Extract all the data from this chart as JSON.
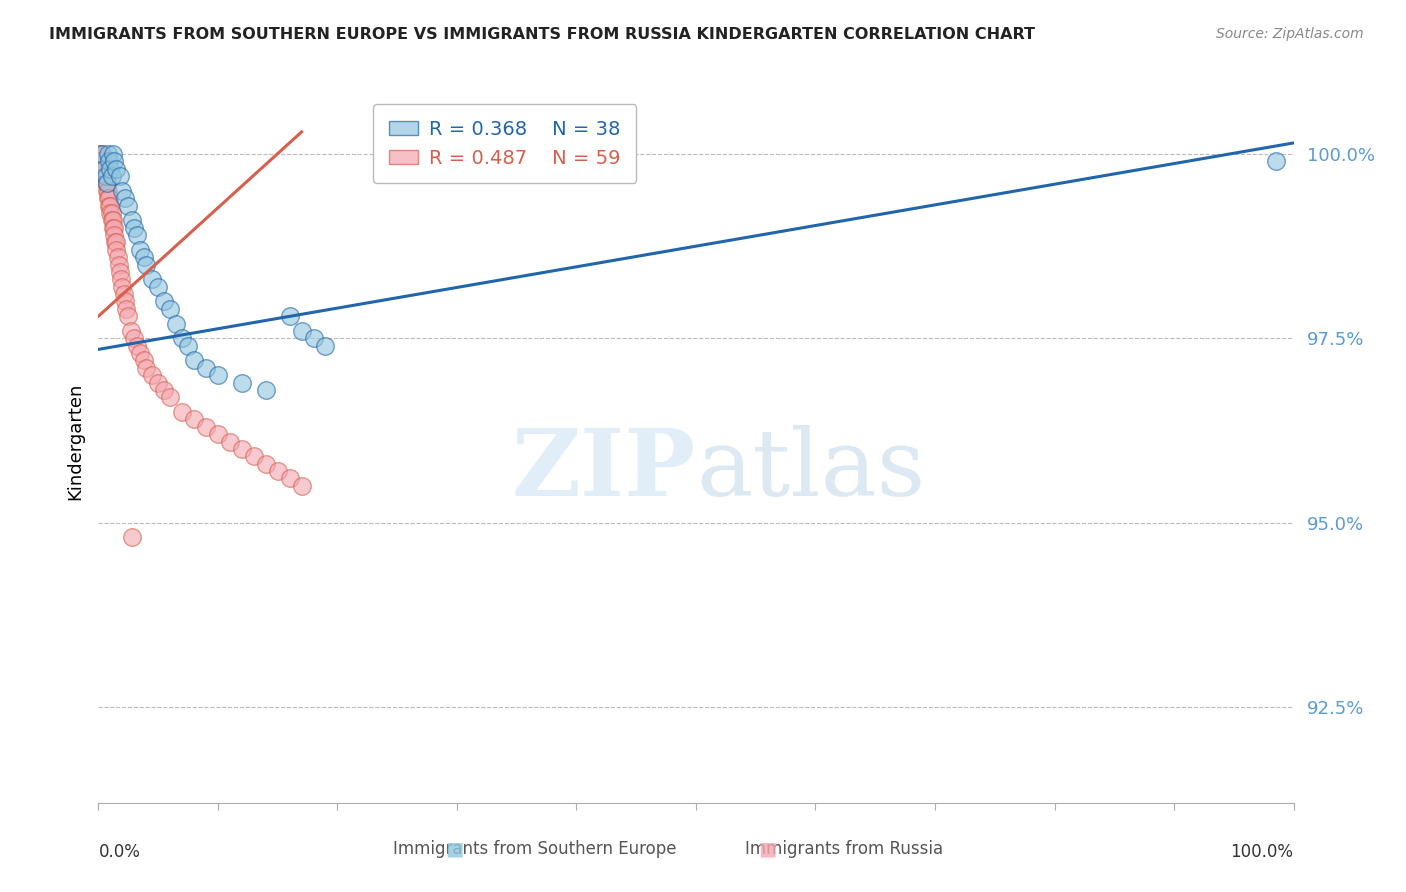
{
  "title": "IMMIGRANTS FROM SOUTHERN EUROPE VS IMMIGRANTS FROM RUSSIA KINDERGARTEN CORRELATION CHART",
  "source": "Source: ZipAtlas.com",
  "ylabel": "Kindergarten",
  "yticks": [
    92.5,
    95.0,
    97.5,
    100.0
  ],
  "ytick_labels": [
    "92.5%",
    "95.0%",
    "97.5%",
    "100.0%"
  ],
  "xlim": [
    0.0,
    100.0
  ],
  "ylim": [
    91.2,
    101.0
  ],
  "watermark_text": "ZIPatlas",
  "legend_r1": "R = 0.368",
  "legend_n1": "N = 38",
  "legend_r2": "R = 0.487",
  "legend_n2": "N = 59",
  "color_blue": "#92c5de",
  "color_pink": "#f4a6b0",
  "color_blue_line": "#2166ac",
  "color_pink_line": "#d6604d",
  "color_ytick": "#5b9bd5",
  "color_xtick": "#333333",
  "scatter_blue_x": [
    0.3,
    0.5,
    0.6,
    0.7,
    0.8,
    0.9,
    1.0,
    1.1,
    1.2,
    1.3,
    1.5,
    1.8,
    2.0,
    2.2,
    2.5,
    2.8,
    3.0,
    3.2,
    3.5,
    3.8,
    4.0,
    4.5,
    5.0,
    5.5,
    6.0,
    6.5,
    7.0,
    7.5,
    8.0,
    9.0,
    10.0,
    12.0,
    14.0,
    16.0,
    17.0,
    18.0,
    19.0,
    98.5
  ],
  "scatter_blue_y": [
    100.0,
    99.8,
    99.7,
    99.6,
    100.0,
    99.9,
    99.8,
    99.7,
    100.0,
    99.9,
    99.8,
    99.7,
    99.5,
    99.4,
    99.3,
    99.1,
    99.0,
    98.9,
    98.7,
    98.6,
    98.5,
    98.3,
    98.2,
    98.0,
    97.9,
    97.7,
    97.5,
    97.4,
    97.2,
    97.1,
    97.0,
    96.9,
    96.8,
    97.8,
    97.6,
    97.5,
    97.4,
    99.9
  ],
  "scatter_pink_x": [
    0.1,
    0.2,
    0.3,
    0.3,
    0.4,
    0.4,
    0.5,
    0.5,
    0.6,
    0.6,
    0.7,
    0.7,
    0.8,
    0.8,
    0.9,
    0.9,
    1.0,
    1.0,
    1.1,
    1.1,
    1.2,
    1.2,
    1.3,
    1.3,
    1.4,
    1.5,
    1.5,
    1.6,
    1.7,
    1.8,
    1.9,
    2.0,
    2.1,
    2.2,
    2.3,
    2.5,
    2.7,
    3.0,
    3.2,
    3.5,
    3.8,
    4.0,
    4.5,
    5.0,
    5.5,
    6.0,
    7.0,
    8.0,
    9.0,
    10.0,
    11.0,
    12.0,
    13.0,
    14.0,
    15.0,
    16.0,
    17.0,
    0.15,
    2.8
  ],
  "scatter_pink_y": [
    100.0,
    100.0,
    99.9,
    100.0,
    99.9,
    99.8,
    99.8,
    99.7,
    99.7,
    99.6,
    99.6,
    99.5,
    99.5,
    99.4,
    99.4,
    99.3,
    99.3,
    99.2,
    99.2,
    99.1,
    99.1,
    99.0,
    99.0,
    98.9,
    98.8,
    98.8,
    98.7,
    98.6,
    98.5,
    98.4,
    98.3,
    98.2,
    98.1,
    98.0,
    97.9,
    97.8,
    97.6,
    97.5,
    97.4,
    97.3,
    97.2,
    97.1,
    97.0,
    96.9,
    96.8,
    96.7,
    96.5,
    96.4,
    96.3,
    96.2,
    96.1,
    96.0,
    95.9,
    95.8,
    95.7,
    95.6,
    95.5,
    99.9,
    94.8
  ],
  "blue_line_x0": 0.0,
  "blue_line_x1": 100.0,
  "blue_line_y0": 97.35,
  "blue_line_y1": 100.15,
  "pink_line_x0": 0.0,
  "pink_line_x1": 17.0,
  "pink_line_y0": 97.8,
  "pink_line_y1": 100.3
}
